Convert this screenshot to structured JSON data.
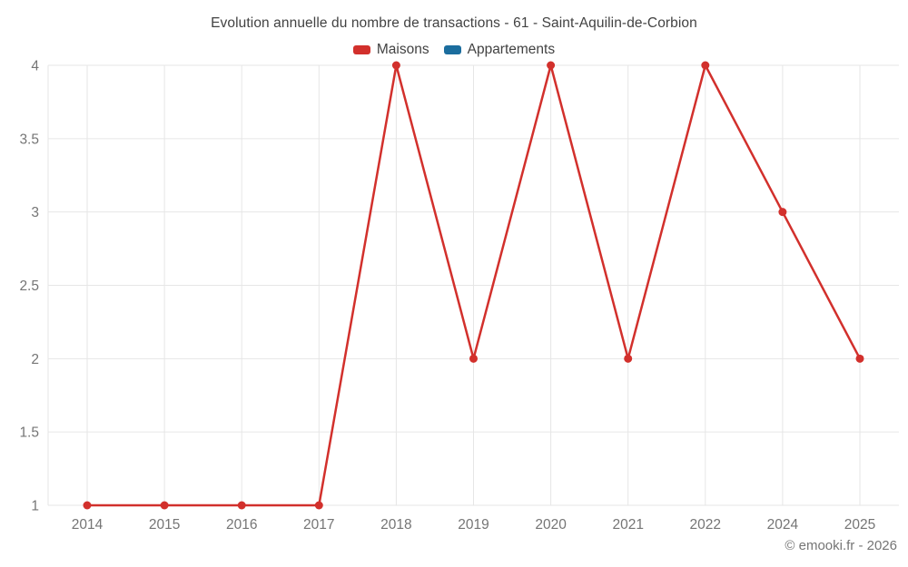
{
  "title": "Evolution annuelle du nombre de transactions - 61 - Saint-Aquilin-de-Corbion",
  "legend": [
    {
      "label": "Maisons",
      "color": "#d2302c"
    },
    {
      "label": "Appartements",
      "color": "#1b6d9e"
    }
  ],
  "watermark": "© emooki.fr - 2026",
  "colors": {
    "grid": "#e6e6e6",
    "axis_text": "#757575",
    "title_text": "#424242",
    "background": "#ffffff"
  },
  "chart_data": {
    "type": "line",
    "title": "Evolution annuelle du nombre de transactions - 61 - Saint-Aquilin-de-Corbion",
    "categories": [
      "2014",
      "2015",
      "2016",
      "2017",
      "2018",
      "2019",
      "2020",
      "2021",
      "2022",
      "2024",
      "2025"
    ],
    "series": [
      {
        "name": "Maisons",
        "color": "#d2302c",
        "values": [
          1,
          1,
          1,
          1,
          4,
          2,
          4,
          2,
          4,
          3,
          2
        ]
      },
      {
        "name": "Appartements",
        "color": "#1b6d9e",
        "values": []
      }
    ],
    "xlabel": "",
    "ylabel": "",
    "ylim": [
      1,
      4
    ],
    "yticks": [
      1,
      1.5,
      2,
      2.5,
      3,
      3.5,
      4
    ],
    "grid": true,
    "legend_position": "top"
  }
}
